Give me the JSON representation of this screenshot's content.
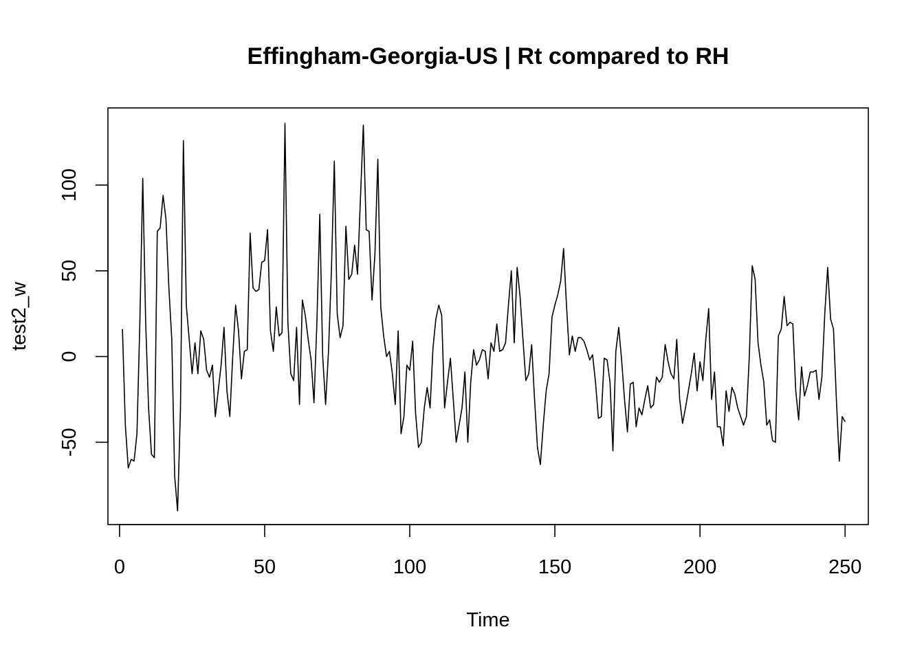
{
  "chart_data": {
    "type": "line",
    "title": "Effingham-Georgia-US | Rt compared to RH",
    "xlabel": "Time",
    "ylabel": "test2_w",
    "xlim": [
      -4,
      258
    ],
    "ylim": [
      -98,
      145
    ],
    "x_ticks": [
      0,
      50,
      100,
      150,
      200,
      250
    ],
    "y_ticks": [
      -50,
      0,
      50,
      100
    ],
    "grid": false,
    "legend": "none",
    "line_color": "#000000",
    "series": [
      {
        "x_start": 1,
        "values": [
          16,
          -40,
          -65,
          -60,
          -61,
          -45,
          20,
          104,
          20,
          -30,
          -57,
          -59,
          73,
          75,
          94,
          80,
          40,
          10,
          -70,
          -90,
          -30,
          126,
          30,
          10,
          -10,
          8,
          -10,
          15,
          10,
          -8,
          -12,
          -5,
          -35,
          -20,
          -5,
          17,
          -20,
          -35,
          0,
          30,
          15,
          -13,
          3,
          4,
          72,
          40,
          38,
          39,
          55,
          56,
          74,
          15,
          3,
          29,
          12,
          14,
          136,
          20,
          -10,
          -14,
          17,
          -28,
          33,
          24,
          10,
          -2,
          -27,
          20,
          83,
          0,
          -28,
          3,
          50,
          114,
          25,
          11,
          18,
          76,
          45,
          48,
          65,
          48,
          92,
          135,
          74,
          73,
          33,
          60,
          115,
          29,
          12,
          0,
          3,
          -10,
          -28,
          15,
          -45,
          -35,
          -5,
          -8,
          9,
          -33,
          -53,
          -50,
          -30,
          -18,
          -30,
          5,
          22,
          30,
          24,
          -30,
          -15,
          -1,
          -25,
          -50,
          -40,
          -30,
          -9,
          -50,
          -15,
          4,
          -5,
          -2,
          4,
          3,
          -13,
          8,
          3,
          19,
          3,
          4,
          8,
          30,
          50,
          8,
          52,
          35,
          10,
          -14,
          -10,
          7,
          -25,
          -53,
          -63,
          -40,
          -20,
          -10,
          23,
          30,
          36,
          44,
          63,
          30,
          1,
          12,
          3,
          11,
          11,
          9,
          4,
          -2,
          1,
          -15,
          -36,
          -35,
          -1,
          -2,
          -15,
          -55,
          3,
          17,
          -2,
          -25,
          -44,
          -16,
          -15,
          -41,
          -30,
          -34,
          -25,
          -17,
          -30,
          -28,
          -12,
          -15,
          -12,
          7,
          -3,
          -10,
          -13,
          10,
          -25,
          -39,
          -30,
          -20,
          -10,
          2,
          -20,
          -3,
          -14,
          10,
          28,
          -25,
          -9,
          -41,
          -41,
          -52,
          -20,
          -32,
          -18,
          -22,
          -30,
          -35,
          -40,
          -35,
          0,
          53,
          45,
          8,
          -5,
          -15,
          -40,
          -37,
          -49,
          -50,
          12,
          16,
          35,
          18,
          20,
          19,
          -20,
          -37,
          -6,
          -23,
          -17,
          -9,
          -9,
          -8,
          -25,
          -12,
          25,
          52,
          22,
          16,
          -25,
          -61,
          -35,
          -38
        ]
      }
    ]
  }
}
